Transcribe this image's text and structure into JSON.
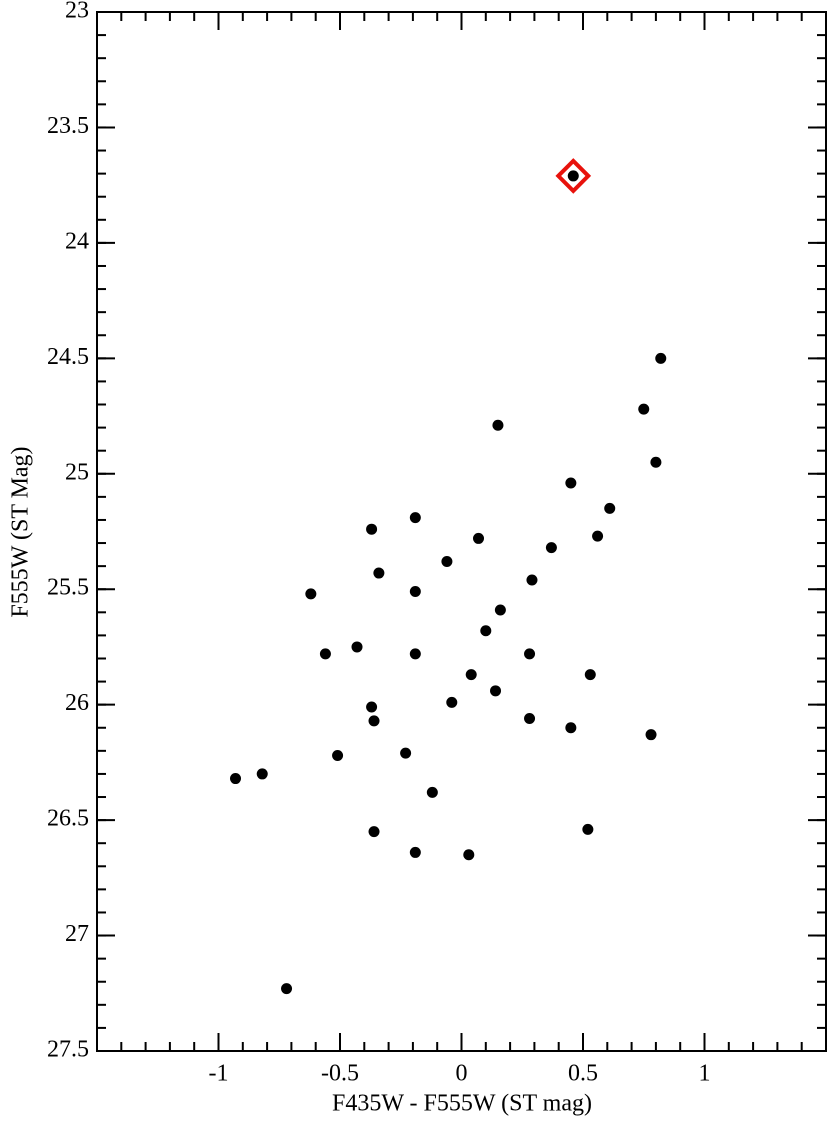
{
  "chart_data": {
    "type": "scatter",
    "xlabel": "F435W - F555W (ST mag)",
    "ylabel": "F555W (ST Mag)",
    "xlim": [
      -1.5,
      1.5
    ],
    "ylim": [
      23,
      27.5
    ],
    "y_inverted": true,
    "xticks": [
      -1,
      -0.5,
      0,
      0.5,
      1
    ],
    "yticks": [
      23,
      23.5,
      24,
      24.5,
      25,
      25.5,
      26,
      26.5,
      27,
      27.5
    ],
    "minor_tick_step": 0.1,
    "series": [
      {
        "color": "#000000",
        "marker": "dot",
        "x": [
          0.82,
          0.75,
          0.15,
          0.8,
          0.45,
          0.61,
          -0.19,
          -0.37,
          0.07,
          0.56,
          0.37,
          -0.06,
          -0.34,
          0.29,
          -0.62,
          -0.19,
          0.16,
          0.1,
          -0.43,
          -0.56,
          -0.19,
          0.28,
          0.04,
          0.53,
          0.14,
          -0.04,
          -0.37,
          -0.36,
          0.28,
          0.45,
          0.78,
          -0.23,
          -0.51,
          -0.93,
          -0.82,
          -0.12,
          -0.36,
          0.52,
          -0.19,
          0.03,
          -0.72
        ],
        "values": [
          24.5,
          24.72,
          24.79,
          24.95,
          25.04,
          25.15,
          25.19,
          25.24,
          25.28,
          25.27,
          25.32,
          25.38,
          25.43,
          25.46,
          25.52,
          25.51,
          25.59,
          25.68,
          25.75,
          25.78,
          25.78,
          25.78,
          25.87,
          25.87,
          25.94,
          25.99,
          26.01,
          26.07,
          26.06,
          26.1,
          26.13,
          26.21,
          26.22,
          26.32,
          26.3,
          26.38,
          26.55,
          26.54,
          26.64,
          26.65,
          27.23
        ]
      },
      {
        "color": "#000000",
        "marker": "dot",
        "outline": "#e8120c",
        "x": [
          0.46
        ],
        "values": [
          23.71
        ]
      }
    ]
  }
}
